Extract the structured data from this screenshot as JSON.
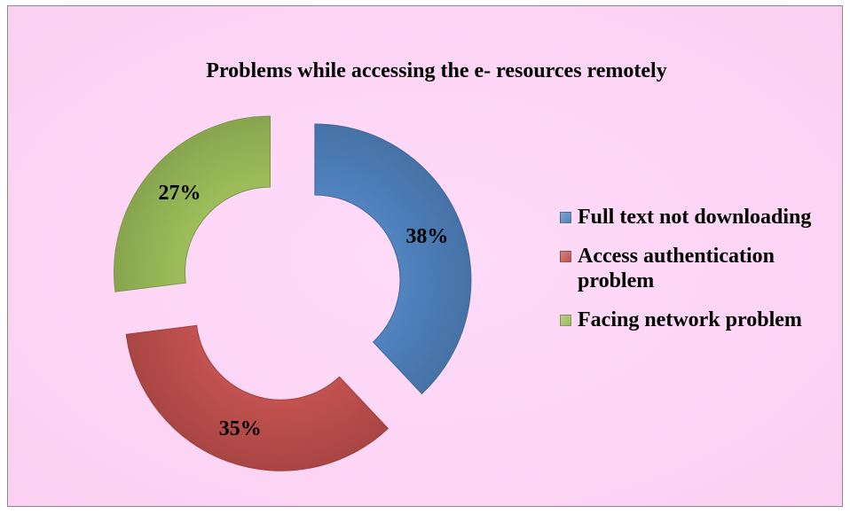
{
  "chart_data": {
    "type": "pie",
    "title": "Problems while accessing the e- resources remotely",
    "categories": [
      "Full text not downloading",
      "Access authentication problem",
      "Facing network problem"
    ],
    "values": [
      38,
      35,
      27
    ],
    "labels": [
      "38%",
      "35%",
      "27%"
    ],
    "colors": [
      "#4f81bd",
      "#c0504d",
      "#9bbb59"
    ],
    "style": "exploded doughnut",
    "legend_position": "right",
    "background": "#ffd9f7"
  }
}
